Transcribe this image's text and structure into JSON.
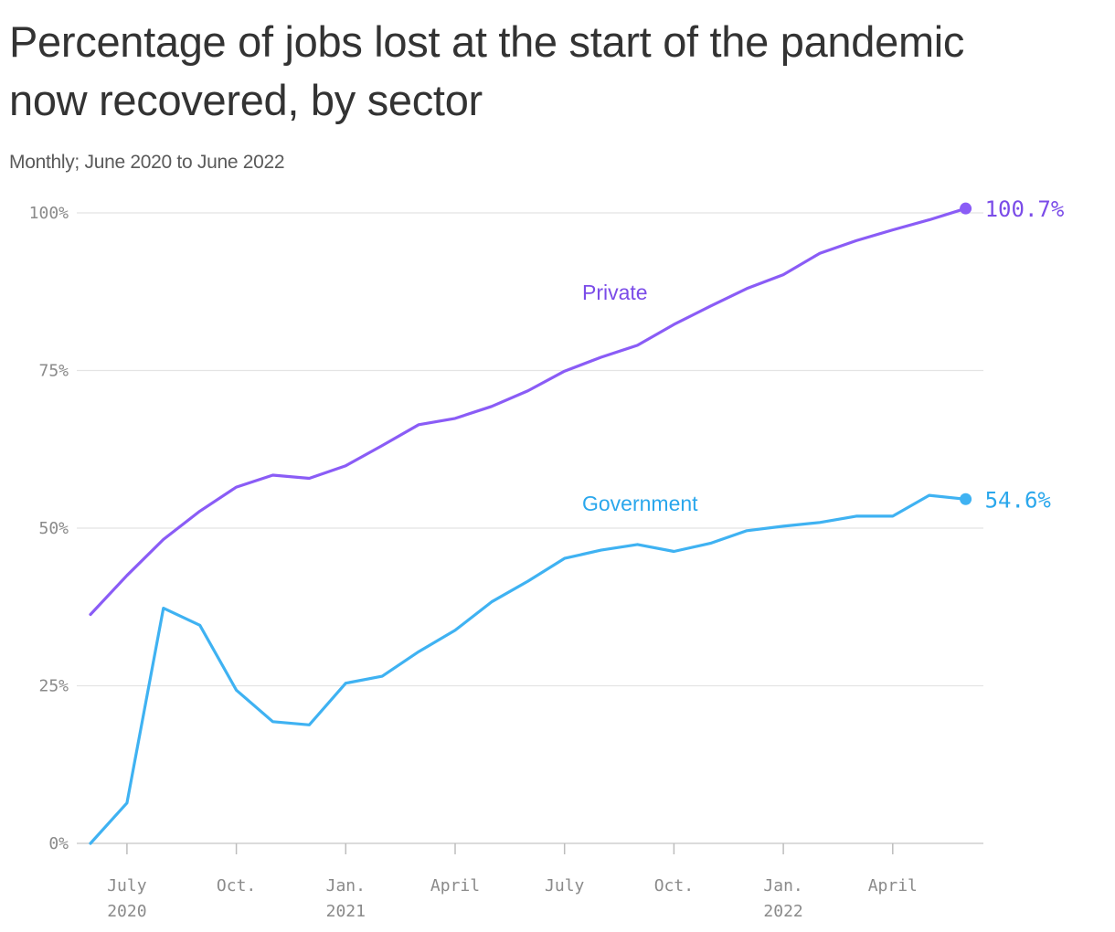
{
  "chart_data": {
    "type": "line",
    "title": "Percentage of jobs lost at the start of the pandemic now recovered, by sector",
    "subtitle": "Monthly; June 2020 to June 2022",
    "x": [
      "2020-06",
      "2020-07",
      "2020-08",
      "2020-09",
      "2020-10",
      "2020-11",
      "2020-12",
      "2021-01",
      "2021-02",
      "2021-03",
      "2021-04",
      "2021-05",
      "2021-06",
      "2021-07",
      "2021-08",
      "2021-09",
      "2021-10",
      "2021-11",
      "2021-12",
      "2022-01",
      "2022-02",
      "2022-03",
      "2022-04",
      "2022-05",
      "2022-06"
    ],
    "ylim": [
      0,
      100
    ],
    "y_ticks": [
      {
        "value": 0,
        "label": "0%"
      },
      {
        "value": 25,
        "label": "25%"
      },
      {
        "value": 50,
        "label": "50%"
      },
      {
        "value": 75,
        "label": "75%"
      },
      {
        "value": 100,
        "label": "100%"
      }
    ],
    "x_ticks": [
      {
        "x": "2020-07",
        "line1": "July",
        "line2": "2020"
      },
      {
        "x": "2020-10",
        "line1": "Oct.",
        "line2": ""
      },
      {
        "x": "2021-01",
        "line1": "Jan.",
        "line2": "2021"
      },
      {
        "x": "2021-04",
        "line1": "April",
        "line2": ""
      },
      {
        "x": "2021-07",
        "line1": "July",
        "line2": ""
      },
      {
        "x": "2021-10",
        "line1": "Oct.",
        "line2": ""
      },
      {
        "x": "2022-01",
        "line1": "Jan.",
        "line2": "2022"
      },
      {
        "x": "2022-04",
        "line1": "April",
        "line2": ""
      }
    ],
    "grid": true,
    "series": [
      {
        "name": "Private",
        "color": "#8a5cf6",
        "label_color": "#7b4ce8",
        "end_label": "100.7%",
        "values": [
          36.3,
          42.5,
          48.2,
          52.7,
          56.5,
          58.4,
          57.9,
          59.9,
          63.1,
          66.4,
          67.4,
          69.3,
          71.8,
          74.9,
          77.1,
          79.0,
          82.3,
          85.2,
          88.0,
          90.2,
          93.6,
          95.6,
          97.3,
          98.9,
          100.7
        ]
      },
      {
        "name": "Government",
        "color": "#3fb2f2",
        "label_color": "#2aa7ec",
        "end_label": "54.6%",
        "values": [
          0.0,
          6.4,
          37.3,
          34.6,
          24.3,
          19.3,
          18.8,
          25.4,
          26.5,
          30.4,
          33.8,
          38.3,
          41.6,
          45.2,
          46.5,
          47.4,
          46.3,
          47.6,
          49.6,
          50.3,
          50.9,
          51.9,
          51.9,
          55.2,
          54.6
        ]
      }
    ]
  }
}
